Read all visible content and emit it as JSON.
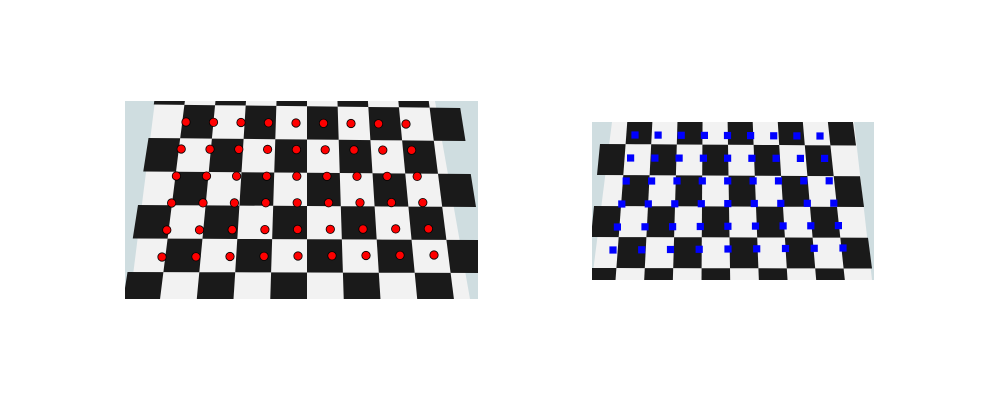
{
  "figure": {
    "background": "#ffffff",
    "panels": [
      {
        "id": "left",
        "marker_shape": "circle",
        "marker_color": "#ff0000",
        "marker_outline": "#000000",
        "grid_rows": 6,
        "grid_cols": 9,
        "square_color": "#1a1a1a",
        "paper_color": "#f2f2f2",
        "background_color": "#cfdde0"
      },
      {
        "id": "right",
        "marker_shape": "square",
        "marker_color": "#0000ff",
        "grid_rows": 6,
        "grid_cols": 9,
        "square_color": "#1a1a1a",
        "paper_color": "#f2f2f2",
        "background_color": "#cfdde0"
      }
    ]
  }
}
